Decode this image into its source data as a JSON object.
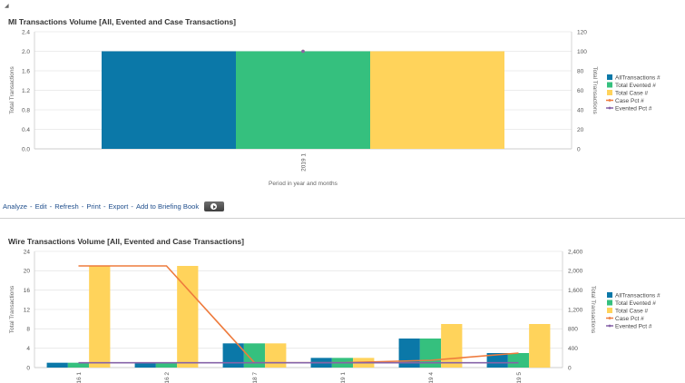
{
  "colors": {
    "all": "#0b78a8",
    "evented": "#35c07e",
    "case": "#ffd35b",
    "case_line": "#ee7b3d",
    "evented_line": "#8663a8",
    "grid": "#e6e6e6"
  },
  "links": [
    "Analyze",
    "Edit",
    "Refresh",
    "Print",
    "Export",
    "Add to Briefing Book"
  ],
  "links_separator": "-",
  "chart_data": [
    {
      "type": "bar",
      "title": "MI Transactions Volume [All, Evented and Case Transactions]",
      "xlabel": "Period in year and months",
      "ylabel": "Total Transactions",
      "y2label": "Total Transactions",
      "categories": [
        "2019 1"
      ],
      "ylim": [
        0,
        2.4
      ],
      "yticks": [
        "0.0",
        "0.4",
        "0.8",
        "1.2",
        "1.6",
        "2.0",
        "2.4"
      ],
      "y2lim": [
        0,
        120
      ],
      "y2ticks": [
        "0",
        "20",
        "40",
        "60",
        "80",
        "100",
        "120"
      ],
      "grid": true,
      "legend_position": "right",
      "legend": [
        "AllTransactions #",
        "Total Evented #",
        "Total Case #",
        "Case Pct #",
        "Evented Pct #"
      ],
      "series": [
        {
          "name": "AllTransactions #",
          "type": "bar",
          "axis": "left",
          "values": [
            2
          ]
        },
        {
          "name": "Total Evented #",
          "type": "bar",
          "axis": "left",
          "values": [
            2
          ]
        },
        {
          "name": "Total Case #",
          "type": "bar",
          "axis": "left",
          "values": [
            2
          ]
        },
        {
          "name": "Case Pct #",
          "type": "line",
          "axis": "right",
          "values": [
            100
          ]
        },
        {
          "name": "Evented Pct #",
          "type": "line",
          "axis": "right",
          "values": [
            100
          ]
        }
      ]
    },
    {
      "type": "bar",
      "title": "Wire Transactions Volume [All, Evented and Case Transactions]",
      "xlabel": "",
      "ylabel": "Total Transactions",
      "y2label": "Total Transactions",
      "categories": [
        "16 1",
        "16 2",
        "18 7",
        "19 1",
        "19 4",
        "19 5"
      ],
      "ylim": [
        0,
        24
      ],
      "yticks": [
        "0",
        "4",
        "8",
        "12",
        "16",
        "20",
        "24"
      ],
      "y2lim": [
        0,
        2400
      ],
      "y2ticks": [
        "0",
        "400",
        "800",
        "1,200",
        "1,600",
        "2,000",
        "2,400"
      ],
      "grid": true,
      "legend_position": "right",
      "legend": [
        "AllTransactions #",
        "Total Evented #",
        "Total Case #",
        "Case Pct #",
        "Evented Pct #"
      ],
      "series": [
        {
          "name": "AllTransactions #",
          "type": "bar",
          "axis": "left",
          "values": [
            1,
            1,
            5,
            2,
            6,
            3
          ]
        },
        {
          "name": "Total Evented #",
          "type": "bar",
          "axis": "left",
          "values": [
            1,
            1,
            5,
            2,
            6,
            3
          ]
        },
        {
          "name": "Total Case #",
          "type": "bar",
          "axis": "left",
          "values": [
            21,
            21,
            5,
            2,
            9,
            9
          ]
        },
        {
          "name": "Case Pct #",
          "type": "line",
          "axis": "right",
          "values": [
            2100,
            2100,
            100,
            100,
            150,
            300
          ]
        },
        {
          "name": "Evented Pct #",
          "type": "line",
          "axis": "right",
          "values": [
            100,
            100,
            100,
            100,
            100,
            100
          ]
        }
      ]
    }
  ]
}
